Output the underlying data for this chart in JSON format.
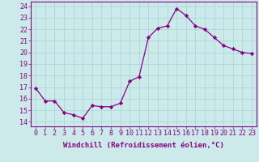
{
  "x": [
    0,
    1,
    2,
    3,
    4,
    5,
    6,
    7,
    8,
    9,
    10,
    11,
    12,
    13,
    14,
    15,
    16,
    17,
    18,
    19,
    20,
    21,
    22,
    23
  ],
  "y": [
    16.9,
    15.8,
    15.8,
    14.8,
    14.6,
    14.3,
    15.4,
    15.3,
    15.3,
    15.6,
    17.5,
    17.9,
    21.3,
    22.1,
    22.3,
    23.8,
    23.2,
    22.3,
    22.0,
    21.3,
    20.6,
    20.3,
    20.0,
    19.9
  ],
  "line_color": "#880088",
  "marker": "D",
  "marker_size": 2.2,
  "bg_color": "#cceaea",
  "grid_color": "#aad8d8",
  "xlabel": "Windchill (Refroidissement éolien,°C)",
  "ylabel_ticks": [
    14,
    15,
    16,
    17,
    18,
    19,
    20,
    21,
    22,
    23,
    24
  ],
  "xtick_labels": [
    "0",
    "1",
    "2",
    "3",
    "4",
    "5",
    "6",
    "7",
    "8",
    "9",
    "10",
    "11",
    "12",
    "13",
    "14",
    "15",
    "16",
    "17",
    "18",
    "19",
    "20",
    "21",
    "22",
    "23"
  ],
  "ylim": [
    13.6,
    24.4
  ],
  "xlim": [
    -0.5,
    23.5
  ],
  "xlabel_fontsize": 6.5,
  "tick_fontsize": 6.0,
  "spine_color": "#880088",
  "axis_color": "#880088"
}
